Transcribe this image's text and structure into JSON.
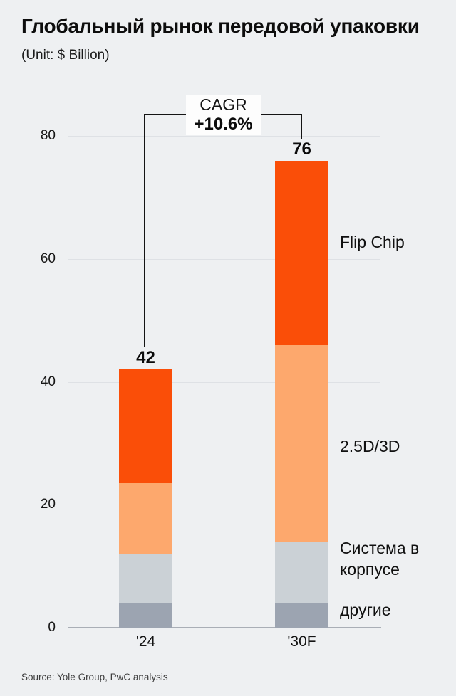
{
  "header": {
    "title": "Глобальный рынок передовой упаковки",
    "unit": "(Unit: $ Billion)"
  },
  "cagr": {
    "label": "CAGR",
    "value": "+10.6%"
  },
  "chart_data": {
    "type": "bar",
    "stacked": true,
    "title": "Глобальный рынок передовой упаковки",
    "unit_label": "(Unit: $ Billion)",
    "categories": [
      "'24",
      "'30F"
    ],
    "totals": [
      42,
      76
    ],
    "series": [
      {
        "name": "другие",
        "color": "#9CA4B1",
        "values": [
          4,
          4
        ]
      },
      {
        "name": "Система в корпусе",
        "color": "#CBD1D6",
        "values": [
          8,
          10
        ]
      },
      {
        "name": "2.5D/3D",
        "color": "#FDA86D",
        "values": [
          11.5,
          32
        ]
      },
      {
        "name": "Flip Chip",
        "color": "#FA4E08",
        "values": [
          18.5,
          30
        ]
      }
    ],
    "yticks": [
      0,
      20,
      40,
      60,
      80
    ],
    "ylim": [
      0,
      80
    ],
    "grid": true,
    "legend_position": "right-of-second-bar",
    "annotation": {
      "label": "CAGR",
      "value": "+10.6%"
    }
  },
  "legend": {
    "items": [
      "Flip Chip",
      "2.5D/3D",
      "Система в корпусе",
      "другие"
    ]
  },
  "source": "Source: Yole Group, PwC analysis"
}
